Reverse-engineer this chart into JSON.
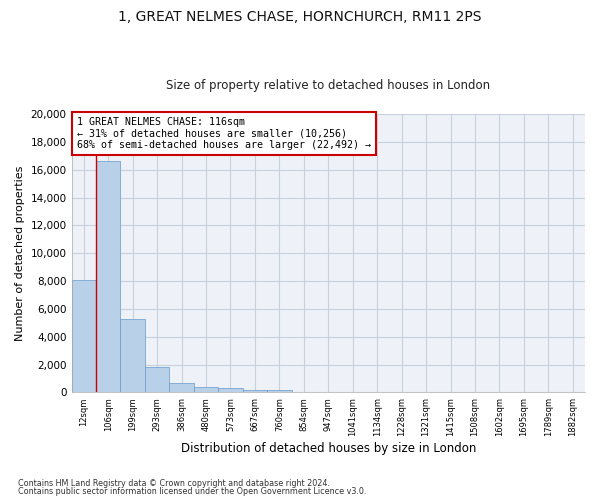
{
  "title": "1, GREAT NELMES CHASE, HORNCHURCH, RM11 2PS",
  "subtitle": "Size of property relative to detached houses in London",
  "xlabel": "Distribution of detached houses by size in London",
  "ylabel": "Number of detached properties",
  "bar_color": "#b8d0e8",
  "bar_edge_color": "#6699cc",
  "grid_color": "#c8d0dd",
  "background_color": "#eef2f8",
  "categories": [
    "12sqm",
    "106sqm",
    "199sqm",
    "293sqm",
    "386sqm",
    "480sqm",
    "573sqm",
    "667sqm",
    "760sqm",
    "854sqm",
    "947sqm",
    "1041sqm",
    "1134sqm",
    "1228sqm",
    "1321sqm",
    "1415sqm",
    "1508sqm",
    "1602sqm",
    "1695sqm",
    "1789sqm",
    "1882sqm"
  ],
  "values": [
    8100,
    16600,
    5300,
    1850,
    700,
    380,
    290,
    200,
    150,
    0,
    0,
    0,
    0,
    0,
    0,
    0,
    0,
    0,
    0,
    0,
    0
  ],
  "ylim": [
    0,
    20000
  ],
  "yticks": [
    0,
    2000,
    4000,
    6000,
    8000,
    10000,
    12000,
    14000,
    16000,
    18000,
    20000
  ],
  "vline_x": 1.5,
  "annotation_text": "1 GREAT NELMES CHASE: 116sqm\n← 31% of detached houses are smaller (10,256)\n68% of semi-detached houses are larger (22,492) →",
  "annotation_box_color": "#ffffff",
  "annotation_box_edge_color": "#cc0000",
  "footer_line1": "Contains HM Land Registry data © Crown copyright and database right 2024.",
  "footer_line2": "Contains public sector information licensed under the Open Government Licence v3.0."
}
